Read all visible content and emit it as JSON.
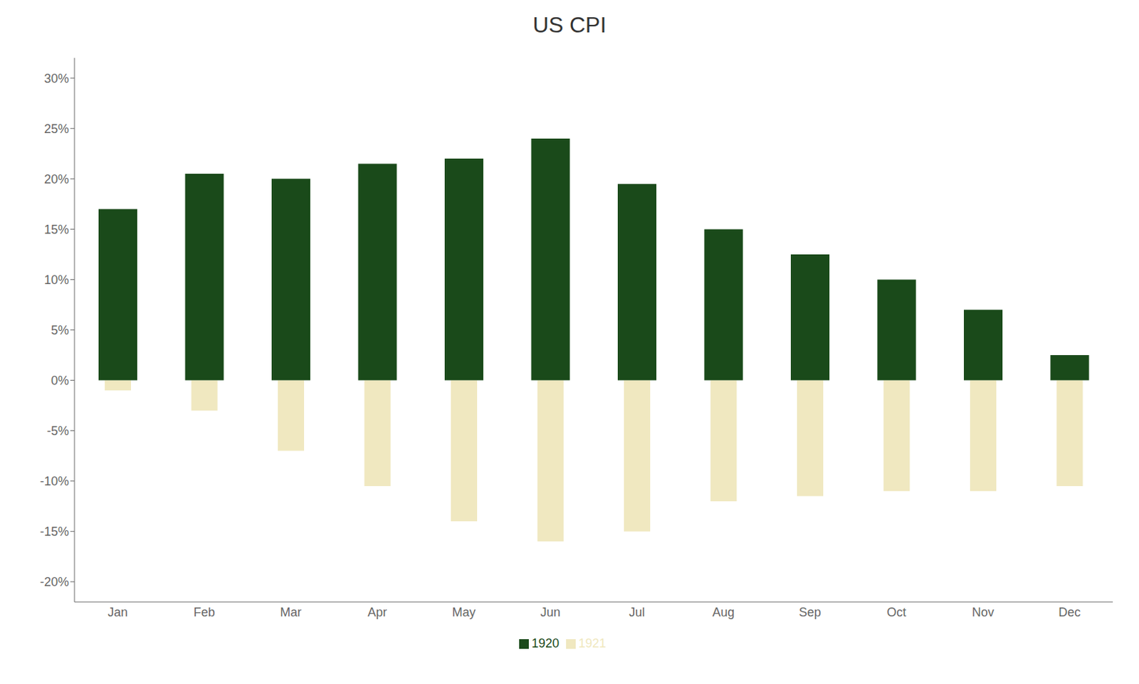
{
  "chart_data": {
    "type": "bar",
    "title": "US CPI",
    "categories": [
      "Jan",
      "Feb",
      "Mar",
      "Apr",
      "May",
      "Jun",
      "Jul",
      "Aug",
      "Sep",
      "Oct",
      "Nov",
      "Dec"
    ],
    "series": [
      {
        "name": "1921",
        "color": "#f0e8c0",
        "values": [
          -1.0,
          -3.0,
          -7.0,
          -10.5,
          -14.0,
          -16.0,
          -15.0,
          -12.0,
          -11.5,
          -11.0,
          -11.0,
          -10.5
        ]
      },
      {
        "name": "1920",
        "color": "#1a4a1a",
        "values": [
          17.0,
          20.5,
          20.0,
          21.5,
          22.0,
          24.0,
          19.5,
          15.0,
          12.5,
          10.0,
          7.0,
          2.5
        ]
      }
    ],
    "ylim": [
      -22,
      32
    ],
    "yticks": [
      {
        "value": -20,
        "label": "-20%"
      },
      {
        "value": -15,
        "label": "-15%"
      },
      {
        "value": -10,
        "label": "-10%"
      },
      {
        "value": -5,
        "label": "-5%"
      },
      {
        "value": 0,
        "label": "0%"
      },
      {
        "value": 5,
        "label": "5%"
      },
      {
        "value": 10,
        "label": "10%"
      },
      {
        "value": 15,
        "label": "15%"
      },
      {
        "value": 20,
        "label": "20%"
      },
      {
        "value": 25,
        "label": "25%"
      },
      {
        "value": 30,
        "label": "30%"
      }
    ],
    "grid": false,
    "legend": "bottom"
  }
}
